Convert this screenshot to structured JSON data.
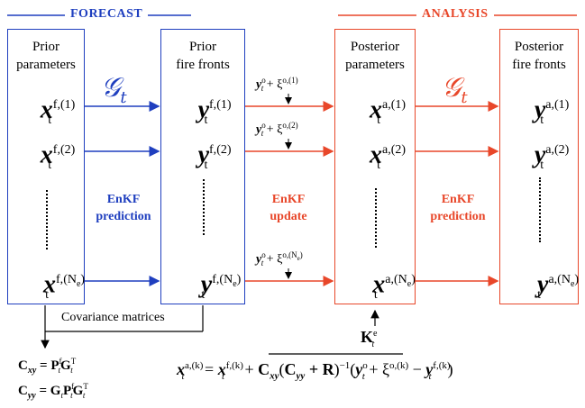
{
  "headers": {
    "forecast": "FORECAST",
    "analysis": "ANALYSIS"
  },
  "boxes": {
    "prior_params": {
      "title_1": "Prior",
      "title_2": "parameters",
      "var": "x",
      "sup": "f,",
      "m1": "(1)",
      "m2": "(2)",
      "mN": "(N",
      "mN_sub": "e",
      "mN_end": ")"
    },
    "prior_fronts": {
      "title_1": "Prior",
      "title_2": "fire fronts",
      "var": "y",
      "sup": "f,",
      "m1": "(1)",
      "m2": "(2)",
      "mN": "(N",
      "mN_sub": "e",
      "mN_end": ")"
    },
    "post_params": {
      "title_1": "Posterior",
      "title_2": "parameters",
      "var": "x",
      "sup": "a,",
      "m1": "(1)",
      "m2": "(2)",
      "mN": "(N",
      "mN_sub": "e",
      "mN_end": ")"
    },
    "post_fronts": {
      "title_1": "Posterior",
      "title_2": "fire fronts",
      "var": "y",
      "sup": "a,",
      "m1": "(1)",
      "m2": "(2)",
      "mN": "(N",
      "mN_sub": "e",
      "mN_end": ")"
    }
  },
  "subscript_t": "t",
  "operators": {
    "g1": "𝒢",
    "g2": "𝒢",
    "sub": "t"
  },
  "labels": {
    "enkf_prediction_1": {
      "line1": "EnKF",
      "line2": "prediction"
    },
    "enkf_update": {
      "line1": "EnKF",
      "line2": "update"
    },
    "enkf_prediction_2": {
      "line1": "EnKF",
      "line2": "prediction"
    }
  },
  "observations": {
    "y": "y",
    "o": "o",
    "plus": " + ξ",
    "sup1": "o,(1)",
    "sup2": "o,(2)",
    "supN": "o,(N",
    "supN_sub": "e",
    "supN_end": ")"
  },
  "covariance": {
    "label": "Covariance matrices",
    "cxy_lhs": "C",
    "cxy_sub": "xy",
    "cxy_rhs": " = P",
    "cxy_f": "f",
    "cxy_t": "t",
    "cxy_g": "G",
    "cxy_T": "T",
    "cyy_lhs": "C",
    "cyy_sub": "yy",
    "cyy_rhs": " = G",
    "cyy_p": "P",
    "cyy_f": "f",
    "cyy_g": "G",
    "cyy_T": "T"
  },
  "gain": {
    "K": "K",
    "sub": "t",
    "sup": "e"
  },
  "equation": {
    "x": "x",
    "t": "t",
    "sup_a": "a,(k)",
    "eq": " = ",
    "sup_f": "f,(k)",
    "plus": " + ",
    "C": "C",
    "xy": "xy",
    "open": "(",
    "yy": "yy",
    "plusR": " + R",
    "close_inv": ")",
    "inv": "−1",
    "y_open": "(",
    "y": "y",
    "o": "o",
    "plus_xi": " + ξ",
    "xi_sup": "o,(k)",
    "minus": " − ",
    "sup_fk": "f,(k)",
    "end": ")"
  },
  "colors": {
    "blue": "#1f3fbf",
    "red": "#e8472a"
  }
}
